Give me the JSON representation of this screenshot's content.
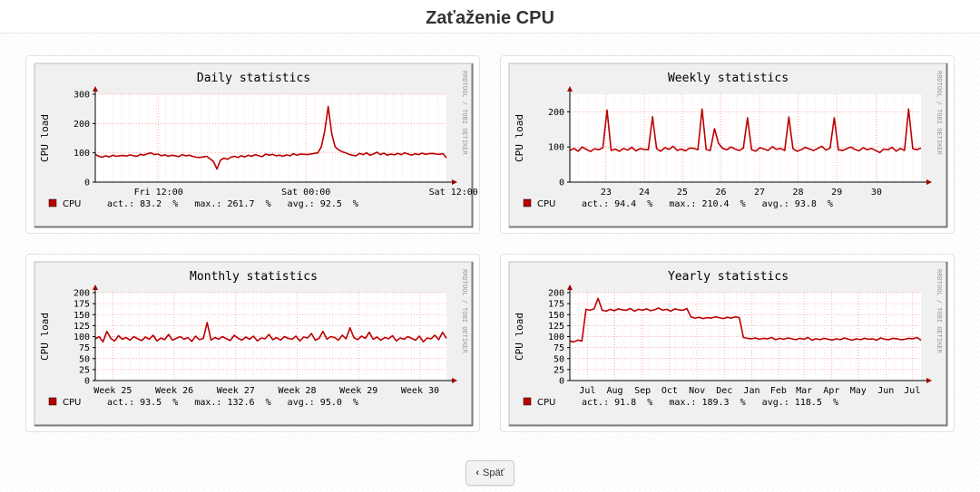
{
  "page": {
    "title": "Zaťaženie CPU"
  },
  "back_button": {
    "label": "Späť",
    "icon": "chevron-left-icon"
  },
  "colors": {
    "series": "#bb0000",
    "grid": "#ff9999",
    "axis": "#000000",
    "chart_bg": "#f0f0f0",
    "plot_bg": "#ffffff"
  },
  "chart_data": [
    {
      "type": "line",
      "title": "Daily statistics",
      "ylabel": "CPU load",
      "watermark": "RRDTOOL / TOBI OETIKER",
      "ylim": [
        0,
        300
      ],
      "yticks": [
        "0",
        "100",
        "200",
        "300"
      ],
      "xticks": [
        {
          "label": "Fri 12:00",
          "x": 0.18
        },
        {
          "label": "Sat 00:00",
          "x": 0.6
        },
        {
          "label": "Sat 12:00",
          "x": 1.02
        }
      ],
      "series": [
        {
          "name": "CPU",
          "values": [
            95,
            88,
            85,
            90,
            86,
            92,
            88,
            90,
            91,
            89,
            93,
            90,
            88,
            95,
            92,
            97,
            100,
            94,
            96,
            90,
            93,
            88,
            92,
            90,
            87,
            94,
            90,
            92,
            88,
            85,
            84,
            86,
            88,
            80,
            70,
            45,
            75,
            82,
            78,
            85,
            88,
            84,
            90,
            86,
            92,
            88,
            94,
            90,
            87,
            96,
            92,
            95,
            90,
            92,
            88,
            93,
            90,
            97,
            92,
            96,
            95,
            94,
            96,
            98,
            100,
            120,
            175,
            258,
            165,
            120,
            110,
            104,
            100,
            95,
            92,
            90,
            98,
            94,
            100,
            92,
            96,
            102,
            94,
            99,
            92,
            96,
            93,
            98,
            94,
            100,
            96,
            92,
            97,
            94,
            99,
            95,
            97,
            98,
            96,
            95,
            97,
            83
          ]
        },
        {
          "name": "",
          "values": []
        }
      ],
      "legend": {
        "name": "CPU",
        "stats": "act.: 83.2  %   max.: 261.7  %   avg.: 92.5  %"
      }
    },
    {
      "type": "line",
      "title": "Weekly statistics",
      "ylabel": "CPU load",
      "watermark": "RRDTOOL / TOBI OETIKER",
      "ylim": [
        0,
        250
      ],
      "yticks": [
        "0",
        "100",
        "200"
      ],
      "xticks": [
        {
          "label": "23",
          "x": 0.103
        },
        {
          "label": "24",
          "x": 0.212
        },
        {
          "label": "25",
          "x": 0.32
        },
        {
          "label": "26",
          "x": 0.43
        },
        {
          "label": "27",
          "x": 0.54
        },
        {
          "label": "28",
          "x": 0.65
        },
        {
          "label": "29",
          "x": 0.76
        },
        {
          "label": "30",
          "x": 0.873
        }
      ],
      "series": [
        {
          "name": "CPU",
          "values": [
            90,
            96,
            88,
            100,
            93,
            87,
            95,
            92,
            98,
            205,
            90,
            94,
            88,
            96,
            91,
            99,
            89,
            95,
            93,
            92,
            186,
            95,
            88,
            98,
            93,
            102,
            90,
            94,
            89,
            97,
            96,
            92,
            208,
            93,
            90,
            152,
            110,
            96,
            92,
            100,
            94,
            90,
            97,
            183,
            92,
            88,
            98,
            94,
            90,
            101,
            93,
            96,
            90,
            185,
            95,
            88,
            92,
            99,
            94,
            90,
            96,
            102,
            91,
            97,
            183,
            92,
            90,
            95,
            100,
            93,
            89,
            98,
            92,
            96,
            90,
            84,
            94,
            92,
            99,
            88,
            96,
            90,
            208,
            95,
            92,
            97
          ]
        }
      ],
      "legend": {
        "name": "CPU",
        "stats": "act.: 94.4  %   max.: 210.4  %   avg.: 93.8  %"
      }
    },
    {
      "type": "line",
      "title": "Monthly statistics",
      "ylabel": "CPU load",
      "watermark": "RRDTOOL / TOBI OETIKER",
      "ylim": [
        0,
        200
      ],
      "yticks": [
        "0",
        "25",
        "50",
        "75",
        "100",
        "125",
        "150",
        "175",
        "200"
      ],
      "xticks": [
        {
          "label": "Week 25",
          "x": 0.05
        },
        {
          "label": "Week 26",
          "x": 0.225
        },
        {
          "label": "Week 27",
          "x": 0.4
        },
        {
          "label": "Week 28",
          "x": 0.575
        },
        {
          "label": "Week 29",
          "x": 0.75
        },
        {
          "label": "Week 30",
          "x": 0.925
        }
      ],
      "series": [
        {
          "name": "CPU",
          "values": [
            95,
            100,
            88,
            112,
            96,
            90,
            102,
            94,
            98,
            92,
            100,
            95,
            91,
            99,
            94,
            103,
            90,
            97,
            93,
            105,
            92,
            96,
            100,
            94,
            98,
            89,
            101,
            93,
            96,
            132,
            92,
            98,
            94,
            100,
            95,
            91,
            103,
            96,
            92,
            99,
            94,
            101,
            90,
            97,
            95,
            105,
            93,
            98,
            92,
            100,
            96,
            94,
            101,
            90,
            99,
            97,
            107,
            92,
            96,
            112,
            94,
            100,
            98,
            92,
            103,
            95,
            120,
            98,
            93,
            101,
            96,
            110,
            94,
            99,
            92,
            98,
            95,
            102,
            90,
            97,
            94,
            100,
            96,
            92,
            101,
            88,
            97,
            95,
            103,
            93,
            110,
            96
          ]
        }
      ],
      "legend": {
        "name": "CPU",
        "stats": "act.: 93.5  %   max.: 132.6  %   avg.: 95.0  %"
      }
    },
    {
      "type": "line",
      "title": "Yearly statistics",
      "ylabel": "CPU load",
      "watermark": "RRDTOOL / TOBI OETIKER",
      "ylim": [
        0,
        200
      ],
      "yticks": [
        "0",
        "25",
        "50",
        "75",
        "100",
        "125",
        "150",
        "175",
        "200"
      ],
      "xticks": [
        {
          "label": "Jul",
          "x": 0.05
        },
        {
          "label": "Aug",
          "x": 0.128
        },
        {
          "label": "Sep",
          "x": 0.207
        },
        {
          "label": "Oct",
          "x": 0.284
        },
        {
          "label": "Nov",
          "x": 0.362
        },
        {
          "label": "Dec",
          "x": 0.44
        },
        {
          "label": "Jan",
          "x": 0.518
        },
        {
          "label": "Feb",
          "x": 0.594
        },
        {
          "label": "Mar",
          "x": 0.667
        },
        {
          "label": "Apr",
          "x": 0.745
        },
        {
          "label": "May",
          "x": 0.821
        },
        {
          "label": "Jun",
          "x": 0.9
        },
        {
          "label": "Jul",
          "x": 0.975
        }
      ],
      "series": [
        {
          "name": "CPU",
          "values": [
            90,
            88,
            92,
            90,
            162,
            160,
            163,
            187,
            160,
            158,
            162,
            159,
            163,
            161,
            160,
            164,
            158,
            162,
            160,
            163,
            159,
            161,
            165,
            160,
            162,
            158,
            163,
            161,
            160,
            164,
            145,
            142,
            144,
            141,
            143,
            142,
            145,
            143,
            141,
            144,
            142,
            145,
            143,
            98,
            96,
            95,
            97,
            94,
            96,
            95,
            98,
            93,
            96,
            94,
            97,
            95,
            93,
            96,
            94,
            98,
            92,
            95,
            93,
            96,
            94,
            92,
            95,
            93,
            97,
            94,
            92,
            95,
            93,
            96,
            94,
            95,
            92,
            97,
            94,
            93,
            96,
            95,
            93,
            94,
            96,
            95,
            98,
            92
          ]
        }
      ],
      "legend": {
        "name": "CPU",
        "stats": "act.: 91.8  %   max.: 189.3  %   avg.: 118.5  %"
      }
    }
  ]
}
